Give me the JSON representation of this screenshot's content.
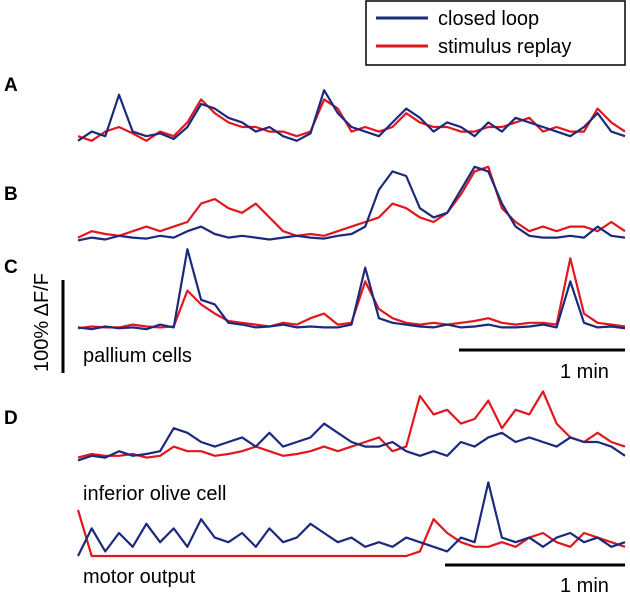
{
  "chart_data": {
    "type": "line",
    "x_unit": "s",
    "x": [
      0,
      5,
      10,
      15,
      20,
      25,
      30,
      35,
      40,
      45,
      50,
      55,
      60,
      65,
      70,
      75,
      80,
      85,
      90,
      95,
      100,
      105,
      110,
      115,
      120,
      125,
      130,
      135,
      140,
      145,
      150,
      155,
      160,
      165,
      170,
      175,
      180,
      185,
      190,
      195,
      200
    ],
    "legend": {
      "placement": "top-right",
      "entries": [
        {
          "name": "closed loop",
          "color": "#1b2a7d"
        },
        {
          "name": "stimulus replay",
          "color": "#e3161d"
        }
      ]
    },
    "panels": [
      {
        "label": "A",
        "caption": "",
        "series": [
          {
            "name": "closed loop",
            "values": [
              10,
              20,
              15,
              60,
              20,
              15,
              18,
              12,
              25,
              50,
              45,
              35,
              30,
              20,
              25,
              15,
              10,
              18,
              65,
              40,
              25,
              20,
              15,
              30,
              45,
              35,
              20,
              30,
              25,
              15,
              30,
              20,
              35,
              30,
              25,
              20,
              15,
              25,
              40,
              20,
              15
            ]
          },
          {
            "name": "stimulus replay",
            "values": [
              15,
              10,
              20,
              25,
              18,
              10,
              20,
              15,
              30,
              55,
              40,
              30,
              25,
              25,
              20,
              20,
              15,
              20,
              55,
              45,
              20,
              25,
              20,
              25,
              40,
              30,
              25,
              25,
              20,
              20,
              25,
              25,
              30,
              35,
              20,
              25,
              20,
              20,
              45,
              30,
              20
            ]
          }
        ]
      },
      {
        "label": "B",
        "caption": "",
        "series": [
          {
            "name": "closed loop",
            "values": [
              5,
              8,
              6,
              10,
              8,
              7,
              10,
              8,
              15,
              20,
              12,
              8,
              10,
              8,
              6,
              8,
              10,
              8,
              7,
              10,
              12,
              20,
              60,
              80,
              75,
              40,
              30,
              35,
              60,
              85,
              80,
              45,
              20,
              10,
              8,
              8,
              10,
              8,
              20,
              10,
              8
            ]
          },
          {
            "name": "stimulus replay",
            "values": [
              8,
              15,
              12,
              10,
              15,
              20,
              15,
              20,
              25,
              45,
              50,
              40,
              35,
              45,
              30,
              15,
              10,
              12,
              10,
              15,
              20,
              25,
              30,
              45,
              40,
              30,
              25,
              35,
              55,
              80,
              85,
              40,
              25,
              15,
              20,
              15,
              20,
              20,
              15,
              25,
              15
            ]
          }
        ]
      },
      {
        "label": "C",
        "caption": "pallium cells",
        "series": [
          {
            "name": "closed loop",
            "values": [
              5,
              3,
              6,
              4,
              5,
              3,
              8,
              5,
              90,
              35,
              30,
              10,
              8,
              5,
              6,
              8,
              5,
              6,
              5,
              5,
              8,
              70,
              15,
              10,
              8,
              6,
              5,
              8,
              5,
              6,
              8,
              5,
              5,
              6,
              8,
              5,
              55,
              10,
              5,
              6,
              4
            ]
          },
          {
            "name": "stimulus replay",
            "values": [
              4,
              6,
              5,
              5,
              8,
              6,
              5,
              6,
              45,
              30,
              20,
              12,
              10,
              8,
              6,
              10,
              8,
              15,
              20,
              8,
              10,
              55,
              25,
              15,
              10,
              8,
              10,
              8,
              10,
              12,
              15,
              10,
              8,
              10,
              10,
              8,
              80,
              20,
              10,
              8,
              6
            ]
          }
        ]
      },
      {
        "label": "D",
        "caption": "inferior olive cell",
        "series": [
          {
            "name": "closed loop",
            "values": [
              5,
              10,
              8,
              15,
              10,
              12,
              15,
              40,
              35,
              25,
              20,
              25,
              30,
              20,
              35,
              20,
              25,
              30,
              45,
              35,
              25,
              20,
              20,
              25,
              15,
              10,
              15,
              10,
              25,
              20,
              30,
              35,
              25,
              30,
              25,
              20,
              30,
              25,
              25,
              20,
              10
            ]
          },
          {
            "name": "stimulus replay",
            "values": [
              8,
              12,
              10,
              10,
              12,
              8,
              10,
              20,
              15,
              15,
              10,
              12,
              15,
              20,
              15,
              10,
              12,
              15,
              20,
              15,
              20,
              25,
              30,
              15,
              20,
              75,
              55,
              60,
              45,
              50,
              70,
              40,
              60,
              55,
              80,
              45,
              30,
              25,
              35,
              25,
              20
            ]
          }
        ]
      },
      {
        "label": "",
        "caption": "motor output",
        "series": [
          {
            "name": "closed loop",
            "values": [
              0,
              30,
              5,
              25,
              10,
              35,
              15,
              30,
              10,
              40,
              20,
              15,
              25,
              10,
              30,
              15,
              20,
              35,
              25,
              15,
              20,
              10,
              15,
              10,
              20,
              15,
              10,
              5,
              20,
              15,
              80,
              20,
              15,
              20,
              10,
              20,
              25,
              15,
              20,
              10,
              15
            ]
          },
          {
            "name": "stimulus replay",
            "values": [
              50,
              0,
              0,
              0,
              0,
              0,
              0,
              0,
              0,
              0,
              0,
              0,
              0,
              0,
              0,
              0,
              0,
              0,
              0,
              0,
              0,
              0,
              0,
              0,
              0,
              5,
              40,
              25,
              15,
              10,
              10,
              15,
              10,
              20,
              25,
              15,
              10,
              25,
              20,
              15,
              10
            ]
          }
        ]
      }
    ],
    "scale_bars": {
      "vertical": {
        "value": 100,
        "label": "100% ΔF/F"
      },
      "time_top": {
        "value": 60,
        "label": "1 min"
      },
      "time_bottom": {
        "value": 60,
        "label": "1 min"
      }
    }
  }
}
